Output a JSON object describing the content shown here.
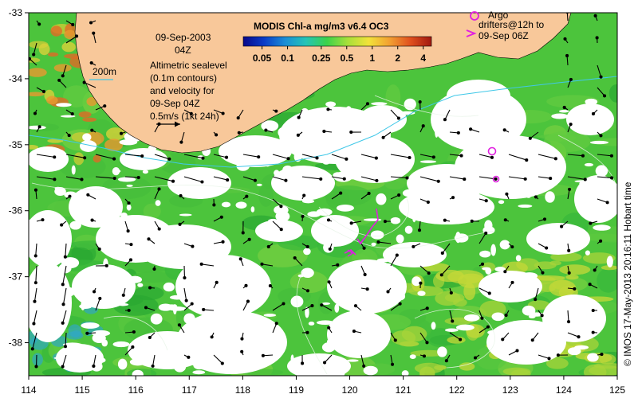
{
  "title": {
    "date": "09-Sep-2003",
    "time": "04Z"
  },
  "colorbar": {
    "title": "MODIS Chl-a mg/m3 v6.4 OC3",
    "tick_labels": [
      "0.05",
      "0.1",
      "0.25",
      "0.5",
      "1",
      "2",
      "4"
    ],
    "tick_values": [
      0.05,
      0.1,
      0.25,
      0.5,
      1,
      2,
      4
    ],
    "range": [
      0.03,
      5
    ],
    "scale": "log",
    "colormap": [
      "#08088a",
      "#0a3cc8",
      "#1c8ed6",
      "#25c4b6",
      "#3cd24a",
      "#a8e03a",
      "#f2e23a",
      "#f2a032",
      "#e0501e",
      "#a01810"
    ]
  },
  "legend": {
    "depth_label": "200m",
    "lines": [
      "Altimetric sealevel",
      "(0.1m contours)",
      "and velocity for",
      "09-Sep 04Z",
      "0.5m/s (1kt 24h)"
    ]
  },
  "argo": {
    "lines": [
      "Argo",
      "drifters@12h to",
      "09-Sep 06Z"
    ]
  },
  "credit": "© IMOS 17-May-2013 20:16:11 Hobart time",
  "axes": {
    "x_ticks": [
      "114",
      "115",
      "116",
      "117",
      "118",
      "119",
      "120",
      "121",
      "122",
      "123",
      "124",
      "125"
    ],
    "y_ticks": [
      "-33",
      "-34",
      "-35",
      "-36",
      "-37",
      "-38"
    ],
    "x_range": [
      114,
      125
    ],
    "y_range": [
      -38.5,
      -33
    ]
  },
  "colors": {
    "land": "#f8c89a",
    "ocean_base": "#4cc43c",
    "cloud": "#ffffff",
    "drifter": "#e020e0",
    "depth_contour": "#40c8e8"
  }
}
